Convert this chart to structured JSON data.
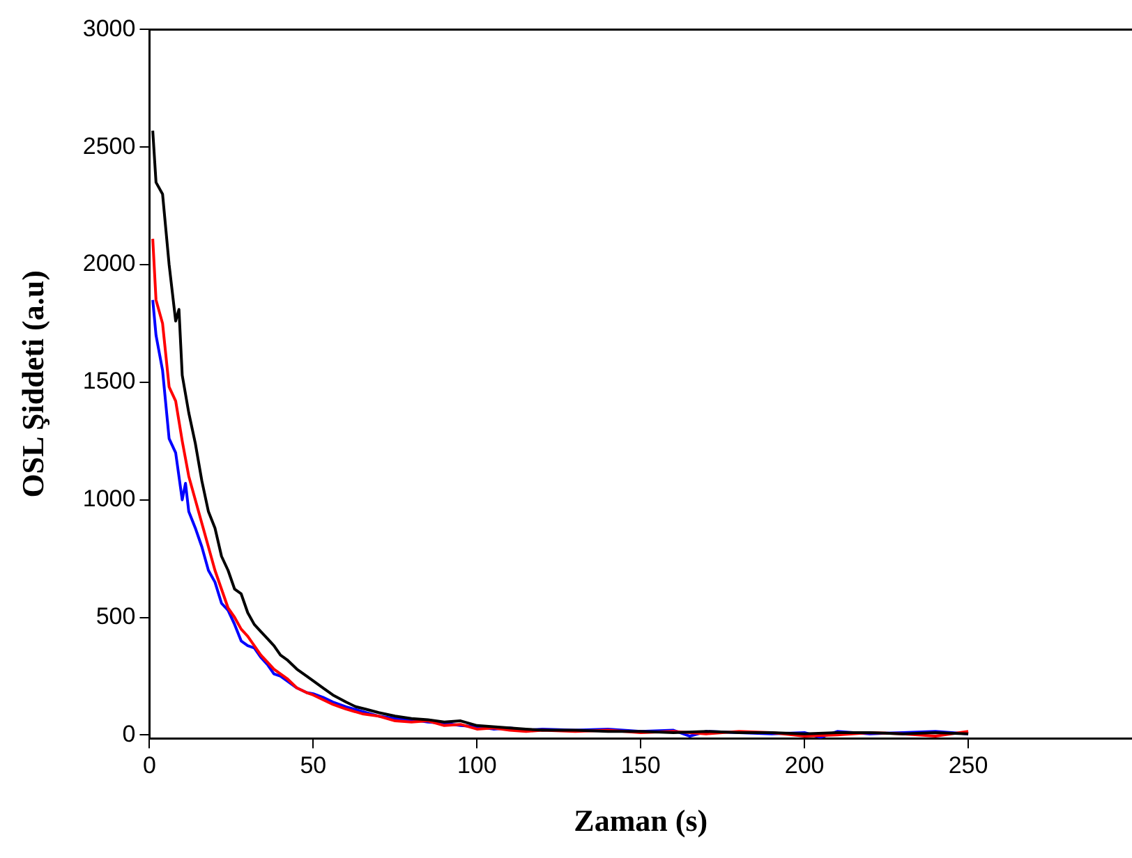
{
  "chart_data": {
    "type": "line",
    "xlabel": "Zaman (s)",
    "ylabel": "OSL Şiddeti (a.u)",
    "xlim": [
      0,
      300
    ],
    "xticks": [
      0,
      50,
      100,
      150,
      200,
      250
    ],
    "ylim": [
      -15,
      3000
    ],
    "yticks": [
      0,
      500,
      1000,
      1500,
      2000,
      2500,
      3000
    ],
    "marker": "none",
    "line_style": "solid",
    "series": [
      {
        "color": "#000000",
        "x": [
          1,
          2,
          4,
          6,
          8,
          9,
          10,
          12,
          14,
          16,
          18,
          20,
          22,
          24,
          26,
          28,
          30,
          32,
          34,
          36,
          38,
          40,
          42,
          45,
          48,
          50,
          53,
          56,
          60,
          63,
          66,
          70,
          75,
          80,
          85,
          90,
          95,
          100,
          105,
          110,
          115,
          120,
          130,
          140,
          150,
          160,
          170,
          180,
          190,
          200,
          210,
          220,
          230,
          240,
          250
        ],
        "values": [
          2570,
          2350,
          2300,
          2000,
          1760,
          1810,
          1530,
          1370,
          1240,
          1080,
          950,
          880,
          760,
          700,
          620,
          600,
          520,
          470,
          440,
          410,
          380,
          340,
          320,
          280,
          250,
          230,
          200,
          170,
          140,
          120,
          110,
          95,
          80,
          70,
          65,
          55,
          60,
          40,
          35,
          30,
          25,
          20,
          20,
          15,
          15,
          10,
          15,
          10,
          10,
          5,
          10,
          10,
          5,
          10,
          5
        ]
      },
      {
        "color": "#ff0000",
        "x": [
          1,
          2,
          4,
          6,
          8,
          10,
          12,
          14,
          16,
          18,
          20,
          22,
          24,
          26,
          28,
          30,
          32,
          34,
          36,
          38,
          40,
          42,
          45,
          48,
          50,
          53,
          56,
          60,
          65,
          70,
          75,
          80,
          85,
          90,
          95,
          100,
          105,
          110,
          115,
          120,
          130,
          140,
          150,
          160,
          170,
          180,
          190,
          200,
          210,
          220,
          230,
          240,
          250
        ],
        "values": [
          2110,
          1850,
          1750,
          1480,
          1420,
          1250,
          1100,
          1000,
          900,
          800,
          700,
          620,
          540,
          500,
          450,
          420,
          380,
          340,
          310,
          280,
          260,
          240,
          200,
          180,
          170,
          150,
          130,
          110,
          90,
          80,
          60,
          55,
          60,
          40,
          45,
          25,
          30,
          20,
          15,
          20,
          15,
          20,
          10,
          15,
          5,
          15,
          10,
          -5,
          0,
          10,
          5,
          -5,
          15
        ]
      },
      {
        "color": "#0000ff",
        "x": [
          1,
          2,
          4,
          6,
          8,
          10,
          11,
          12,
          14,
          16,
          18,
          20,
          22,
          24,
          26,
          28,
          30,
          32,
          34,
          36,
          38,
          40,
          42,
          45,
          48,
          50,
          53,
          56,
          60,
          65,
          70,
          75,
          80,
          85,
          90,
          95,
          100,
          105,
          110,
          115,
          120,
          130,
          140,
          150,
          160,
          165,
          170,
          180,
          190,
          200,
          205,
          210,
          220,
          230,
          240,
          250
        ],
        "values": [
          1850,
          1700,
          1550,
          1260,
          1200,
          1000,
          1070,
          950,
          880,
          800,
          700,
          650,
          560,
          530,
          470,
          400,
          380,
          370,
          330,
          300,
          260,
          250,
          230,
          200,
          180,
          175,
          160,
          140,
          120,
          100,
          80,
          70,
          65,
          55,
          50,
          40,
          35,
          25,
          30,
          20,
          25,
          20,
          25,
          15,
          20,
          -5,
          15,
          10,
          5,
          10,
          -10,
          15,
          5,
          10,
          15,
          5
        ]
      }
    ]
  }
}
